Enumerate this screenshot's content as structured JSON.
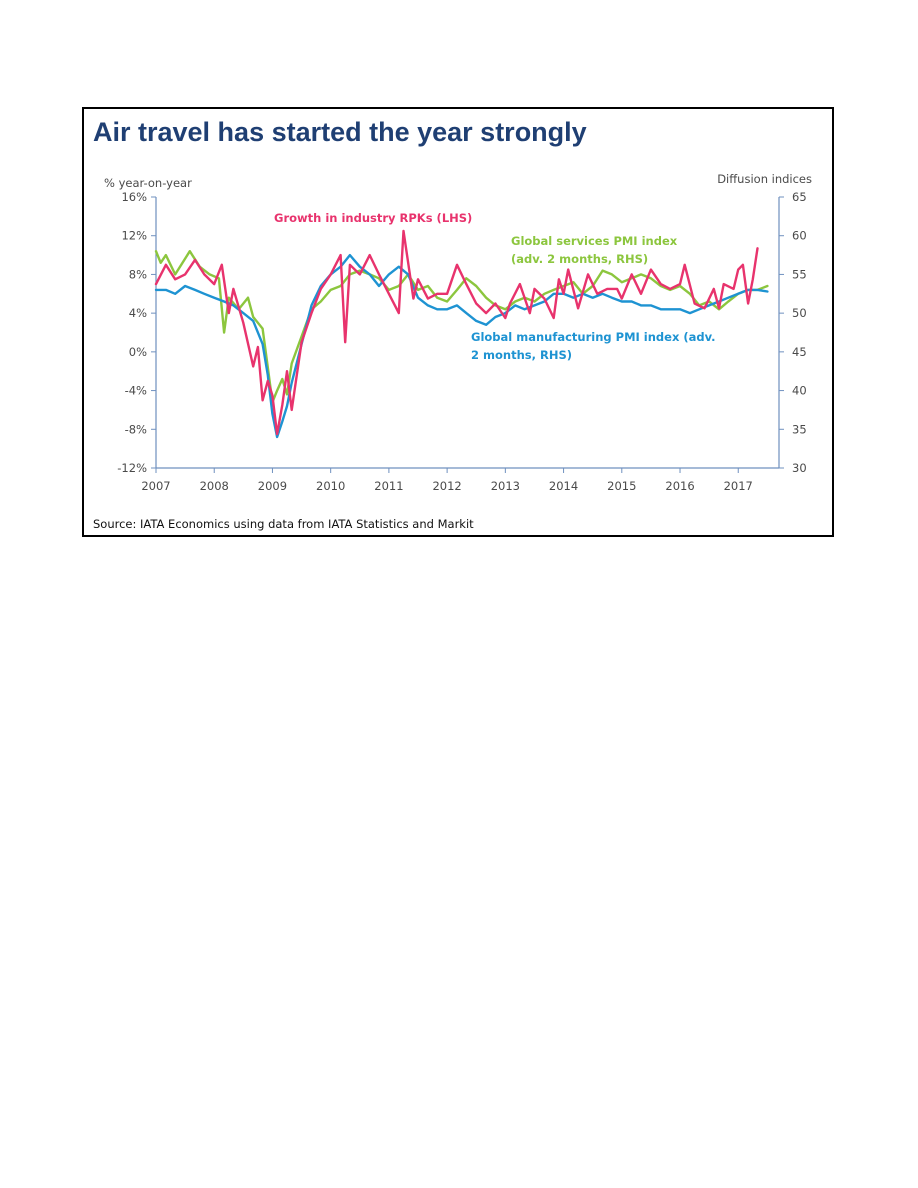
{
  "chart_data": {
    "type": "line",
    "title": "Air travel has started the year strongly",
    "source": "Source: IATA Economics using data from IATA Statistics and Markit",
    "left_axis": {
      "label": "% year-on-year",
      "range": [
        -12,
        16
      ],
      "ticks": [
        -12,
        -8,
        -4,
        0,
        4,
        8,
        12,
        16
      ],
      "tick_labels": [
        "-12%",
        "-8%",
        "-4%",
        "0%",
        "4%",
        "8%",
        "12%",
        "16%"
      ]
    },
    "right_axis": {
      "label": "Diffusion indices",
      "range": [
        30,
        65
      ],
      "ticks": [
        30,
        35,
        40,
        45,
        50,
        55,
        60,
        65
      ],
      "tick_labels": [
        "30",
        "35",
        "40",
        "45",
        "50",
        "55",
        "60",
        "65"
      ]
    },
    "x_axis": {
      "range": [
        2007.0,
        2017.7
      ],
      "ticks": [
        2007,
        2008,
        2009,
        2010,
        2011,
        2012,
        2013,
        2014,
        2015,
        2016,
        2017
      ],
      "tick_labels": [
        "2007",
        "2008",
        "2009",
        "2010",
        "2011",
        "2012",
        "2013",
        "2014",
        "2015",
        "2016",
        "2017"
      ]
    },
    "grid": false,
    "series": [
      {
        "name": "Growth in industry RPKs (LHS)",
        "axis": "left",
        "color": "#e8336d",
        "label_lines": [
          "Growth in industry RPKs (LHS)"
        ],
        "points": [
          [
            2007.0,
            7.0
          ],
          [
            2007.17,
            9.0
          ],
          [
            2007.33,
            7.5
          ],
          [
            2007.5,
            8.0
          ],
          [
            2007.67,
            9.5
          ],
          [
            2007.83,
            8.0
          ],
          [
            2008.0,
            7.0
          ],
          [
            2008.13,
            9.0
          ],
          [
            2008.25,
            4.0
          ],
          [
            2008.33,
            6.5
          ],
          [
            2008.5,
            3.0
          ],
          [
            2008.67,
            -1.5
          ],
          [
            2008.75,
            0.5
          ],
          [
            2008.83,
            -5.0
          ],
          [
            2008.92,
            -3.0
          ],
          [
            2009.0,
            -4.5
          ],
          [
            2009.08,
            -8.5
          ],
          [
            2009.17,
            -5.5
          ],
          [
            2009.25,
            -2.0
          ],
          [
            2009.33,
            -6.0
          ],
          [
            2009.5,
            1.0
          ],
          [
            2009.67,
            4.0
          ],
          [
            2009.83,
            6.5
          ],
          [
            2010.0,
            8.0
          ],
          [
            2010.17,
            10.0
          ],
          [
            2010.25,
            1.0
          ],
          [
            2010.33,
            9.0
          ],
          [
            2010.5,
            8.0
          ],
          [
            2010.67,
            10.0
          ],
          [
            2010.83,
            8.0
          ],
          [
            2011.0,
            6.0
          ],
          [
            2011.17,
            4.0
          ],
          [
            2011.25,
            12.5
          ],
          [
            2011.42,
            5.5
          ],
          [
            2011.5,
            7.5
          ],
          [
            2011.67,
            5.5
          ],
          [
            2011.83,
            6.0
          ],
          [
            2012.0,
            6.0
          ],
          [
            2012.17,
            9.0
          ],
          [
            2012.33,
            7.0
          ],
          [
            2012.5,
            5.0
          ],
          [
            2012.67,
            4.0
          ],
          [
            2012.83,
            5.0
          ],
          [
            2013.0,
            3.5
          ],
          [
            2013.08,
            5.0
          ],
          [
            2013.25,
            7.0
          ],
          [
            2013.42,
            4.0
          ],
          [
            2013.5,
            6.5
          ],
          [
            2013.67,
            5.5
          ],
          [
            2013.83,
            3.5
          ],
          [
            2013.92,
            7.5
          ],
          [
            2014.0,
            6.0
          ],
          [
            2014.08,
            8.5
          ],
          [
            2014.25,
            4.5
          ],
          [
            2014.42,
            8.0
          ],
          [
            2014.58,
            6.0
          ],
          [
            2014.75,
            6.5
          ],
          [
            2014.92,
            6.5
          ],
          [
            2015.0,
            5.5
          ],
          [
            2015.17,
            8.0
          ],
          [
            2015.33,
            6.0
          ],
          [
            2015.5,
            8.5
          ],
          [
            2015.67,
            7.0
          ],
          [
            2015.83,
            6.5
          ],
          [
            2016.0,
            7.0
          ],
          [
            2016.08,
            9.0
          ],
          [
            2016.25,
            5.0
          ],
          [
            2016.42,
            4.5
          ],
          [
            2016.58,
            6.5
          ],
          [
            2016.67,
            4.5
          ],
          [
            2016.75,
            7.0
          ],
          [
            2016.92,
            6.5
          ],
          [
            2017.0,
            8.5
          ],
          [
            2017.08,
            9.0
          ],
          [
            2017.17,
            5.0
          ],
          [
            2017.25,
            7.5
          ],
          [
            2017.33,
            10.7
          ]
        ]
      },
      {
        "name": "Global services PMI index (adv. 2 months, RHS)",
        "axis": "right",
        "color": "#8cc63e",
        "label_lines": [
          "Global services PMI index",
          "(adv. 2 months, RHS)"
        ],
        "points": [
          [
            2007.0,
            58.0
          ],
          [
            2007.08,
            56.5
          ],
          [
            2007.17,
            57.5
          ],
          [
            2007.33,
            55.0
          ],
          [
            2007.58,
            58.0
          ],
          [
            2007.75,
            56.0
          ],
          [
            2007.92,
            55.0
          ],
          [
            2008.08,
            54.5
          ],
          [
            2008.17,
            47.5
          ],
          [
            2008.25,
            52.0
          ],
          [
            2008.42,
            50.5
          ],
          [
            2008.58,
            52.0
          ],
          [
            2008.67,
            49.5
          ],
          [
            2008.83,
            48.0
          ],
          [
            2008.92,
            43.0
          ],
          [
            2009.0,
            38.5
          ],
          [
            2009.08,
            40.0
          ],
          [
            2009.17,
            41.5
          ],
          [
            2009.25,
            39.5
          ],
          [
            2009.33,
            43.5
          ],
          [
            2009.5,
            47.0
          ],
          [
            2009.67,
            50.5
          ],
          [
            2009.83,
            51.5
          ],
          [
            2010.0,
            53.0
          ],
          [
            2010.17,
            53.5
          ],
          [
            2010.33,
            55.0
          ],
          [
            2010.5,
            55.5
          ],
          [
            2010.67,
            55.0
          ],
          [
            2010.83,
            54.5
          ],
          [
            2011.0,
            53.0
          ],
          [
            2011.17,
            53.5
          ],
          [
            2011.33,
            55.0
          ],
          [
            2011.5,
            53.0
          ],
          [
            2011.67,
            53.5
          ],
          [
            2011.83,
            52.0
          ],
          [
            2012.0,
            51.5
          ],
          [
            2012.17,
            53.0
          ],
          [
            2012.33,
            54.5
          ],
          [
            2012.5,
            53.5
          ],
          [
            2012.67,
            52.0
          ],
          [
            2012.83,
            51.0
          ],
          [
            2013.0,
            50.5
          ],
          [
            2013.17,
            51.5
          ],
          [
            2013.33,
            52.0
          ],
          [
            2013.5,
            51.5
          ],
          [
            2013.67,
            52.5
          ],
          [
            2013.83,
            53.0
          ],
          [
            2014.0,
            53.5
          ],
          [
            2014.17,
            54.0
          ],
          [
            2014.33,
            52.5
          ],
          [
            2014.5,
            53.5
          ],
          [
            2014.67,
            55.5
          ],
          [
            2014.83,
            55.0
          ],
          [
            2015.0,
            54.0
          ],
          [
            2015.17,
            54.5
          ],
          [
            2015.33,
            55.0
          ],
          [
            2015.5,
            54.5
          ],
          [
            2015.67,
            53.5
          ],
          [
            2015.83,
            53.0
          ],
          [
            2016.0,
            53.5
          ],
          [
            2016.17,
            52.5
          ],
          [
            2016.33,
            51.0
          ],
          [
            2016.5,
            51.5
          ],
          [
            2016.67,
            50.5
          ],
          [
            2016.83,
            51.5
          ],
          [
            2017.0,
            52.5
          ],
          [
            2017.17,
            53.0
          ],
          [
            2017.33,
            53.0
          ],
          [
            2017.5,
            53.5
          ]
        ]
      },
      {
        "name": "Global manufacturing PMI index (adv. 2 months, RHS)",
        "axis": "right",
        "color": "#1e93d2",
        "label_lines": [
          "Global manufacturing PMI index (adv.",
          "2 months, RHS)"
        ],
        "points": [
          [
            2007.0,
            53.0
          ],
          [
            2007.17,
            53.0
          ],
          [
            2007.33,
            52.5
          ],
          [
            2007.5,
            53.5
          ],
          [
            2007.67,
            53.0
          ],
          [
            2007.83,
            52.5
          ],
          [
            2008.0,
            52.0
          ],
          [
            2008.17,
            51.5
          ],
          [
            2008.33,
            51.0
          ],
          [
            2008.5,
            50.0
          ],
          [
            2008.67,
            49.0
          ],
          [
            2008.83,
            46.0
          ],
          [
            2008.92,
            42.0
          ],
          [
            2009.0,
            37.0
          ],
          [
            2009.08,
            34.0
          ],
          [
            2009.17,
            36.0
          ],
          [
            2009.25,
            38.0
          ],
          [
            2009.33,
            41.0
          ],
          [
            2009.5,
            46.0
          ],
          [
            2009.67,
            51.0
          ],
          [
            2009.83,
            53.5
          ],
          [
            2010.0,
            55.0
          ],
          [
            2010.17,
            56.0
          ],
          [
            2010.33,
            57.5
          ],
          [
            2010.5,
            56.0
          ],
          [
            2010.67,
            55.0
          ],
          [
            2010.83,
            53.5
          ],
          [
            2011.0,
            55.0
          ],
          [
            2011.17,
            56.0
          ],
          [
            2011.33,
            55.0
          ],
          [
            2011.5,
            52.0
          ],
          [
            2011.67,
            51.0
          ],
          [
            2011.83,
            50.5
          ],
          [
            2012.0,
            50.5
          ],
          [
            2012.17,
            51.0
          ],
          [
            2012.33,
            50.0
          ],
          [
            2012.5,
            49.0
          ],
          [
            2012.67,
            48.5
          ],
          [
            2012.83,
            49.5
          ],
          [
            2013.0,
            50.0
          ],
          [
            2013.17,
            51.0
          ],
          [
            2013.33,
            50.5
          ],
          [
            2013.5,
            51.0
          ],
          [
            2013.67,
            51.5
          ],
          [
            2013.83,
            52.5
          ],
          [
            2014.0,
            52.5
          ],
          [
            2014.17,
            52.0
          ],
          [
            2014.33,
            52.5
          ],
          [
            2014.5,
            52.0
          ],
          [
            2014.67,
            52.5
          ],
          [
            2014.83,
            52.0
          ],
          [
            2015.0,
            51.5
          ],
          [
            2015.17,
            51.5
          ],
          [
            2015.33,
            51.0
          ],
          [
            2015.5,
            51.0
          ],
          [
            2015.67,
            50.5
          ],
          [
            2015.83,
            50.5
          ],
          [
            2016.0,
            50.5
          ],
          [
            2016.17,
            50.0
          ],
          [
            2016.33,
            50.5
          ],
          [
            2016.5,
            51.0
          ],
          [
            2016.67,
            51.5
          ],
          [
            2016.83,
            52.0
          ],
          [
            2017.0,
            52.5
          ],
          [
            2017.17,
            53.0
          ],
          [
            2017.33,
            53.0
          ],
          [
            2017.5,
            52.8
          ]
        ]
      }
    ]
  }
}
